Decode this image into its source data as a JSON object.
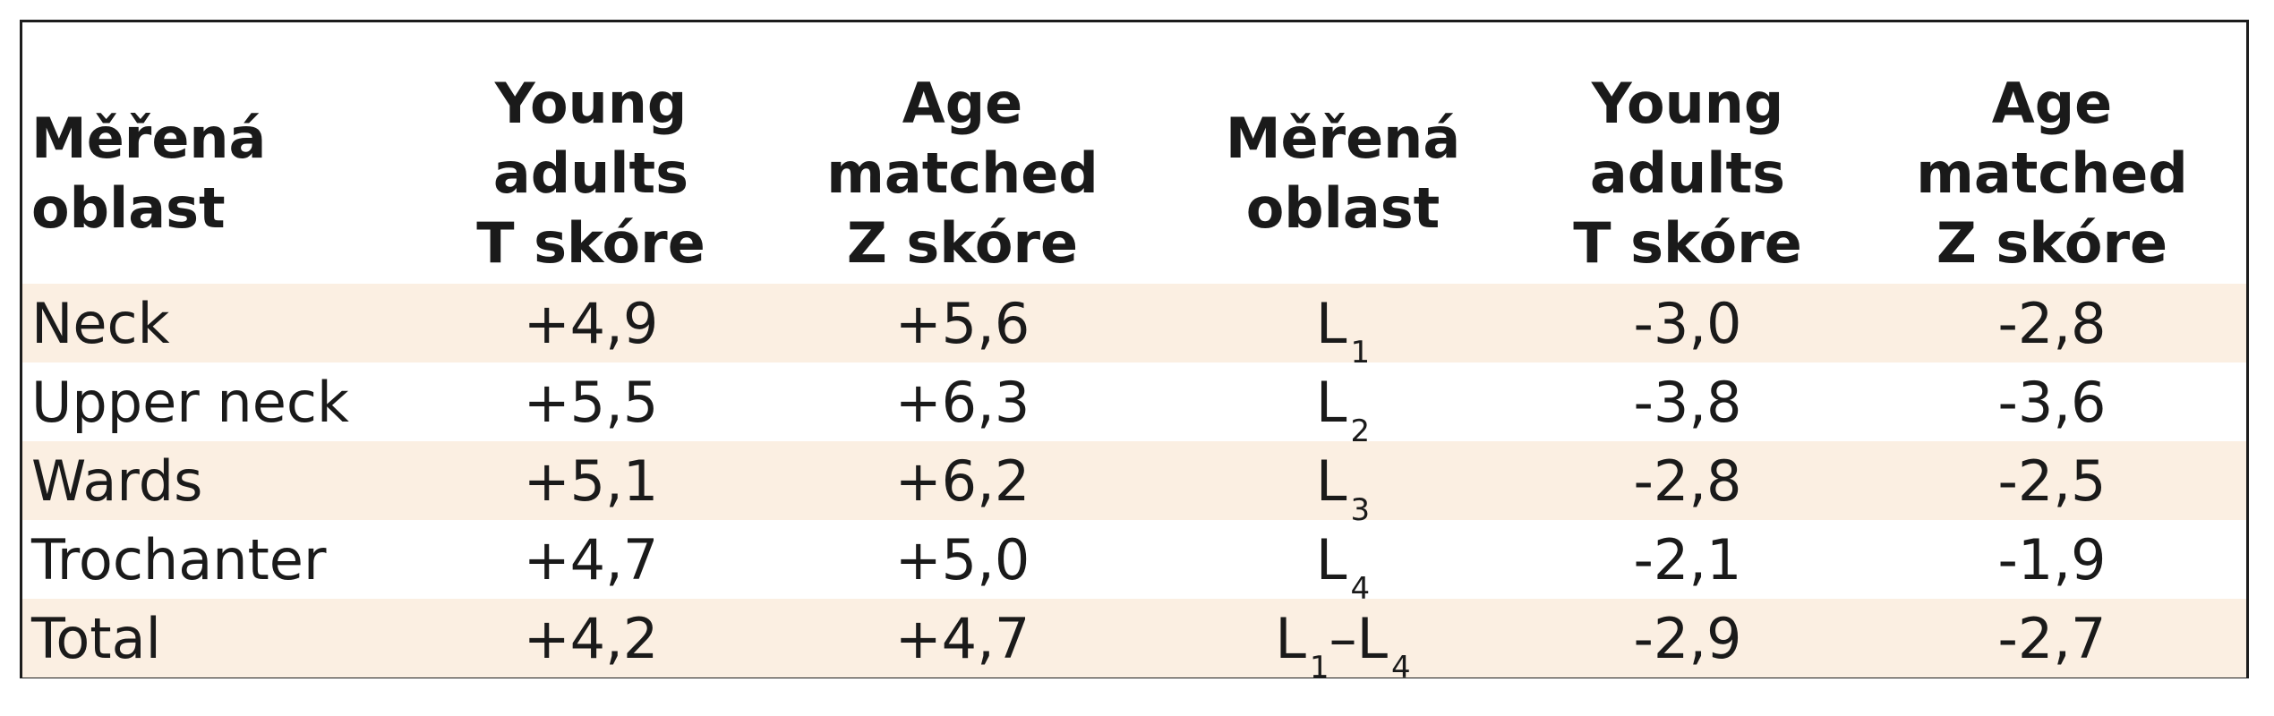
{
  "table": {
    "headers": [
      [
        "Měřená",
        "oblast"
      ],
      [
        "Young",
        "adults",
        "T skóre"
      ],
      [
        "Age",
        "matched",
        "Z skóre"
      ],
      [
        "Měřená",
        "oblast"
      ],
      [
        "Young",
        "adults",
        "T skóre"
      ],
      [
        "Age",
        "matched",
        "Z skóre"
      ]
    ],
    "rows": [
      {
        "region": "Neck",
        "t1": "+4,9",
        "z1": "+5,6",
        "lumbar_letter": "L",
        "lumbar_sub": "1",
        "lumbar_dash": "",
        "lumbar_letter2": "",
        "lumbar_sub2": "",
        "t2": "-3,0",
        "z2": "-2,8"
      },
      {
        "region": "Upper neck",
        "t1": "+5,5",
        "z1": "+6,3",
        "lumbar_letter": "L",
        "lumbar_sub": "2",
        "lumbar_dash": "",
        "lumbar_letter2": "",
        "lumbar_sub2": "",
        "t2": "-3,8",
        "z2": "-3,6"
      },
      {
        "region": "Wards",
        "t1": "+5,1",
        "z1": "+6,2",
        "lumbar_letter": "L",
        "lumbar_sub": "3",
        "lumbar_dash": "",
        "lumbar_letter2": "",
        "lumbar_sub2": "",
        "t2": "-2,8",
        "z2": "-2,5"
      },
      {
        "region": "Trochanter",
        "t1": "+4,7",
        "z1": "+5,0",
        "lumbar_letter": "L",
        "lumbar_sub": "4",
        "lumbar_dash": "",
        "lumbar_letter2": "",
        "lumbar_sub2": "",
        "t2": "-2,1",
        "z2": "-1,9"
      },
      {
        "region": "Total",
        "t1": "+4,2",
        "z1": "+4,7",
        "lumbar_letter": "L",
        "lumbar_sub": "1",
        "lumbar_dash": "–",
        "lumbar_letter2": "L",
        "lumbar_sub2": "4",
        "t2": "-2,9",
        "z2": "-2,7"
      }
    ],
    "colors": {
      "shaded_row": "#fbefe2",
      "border": "#1c1c1c",
      "text": "#1a1a1a"
    }
  }
}
